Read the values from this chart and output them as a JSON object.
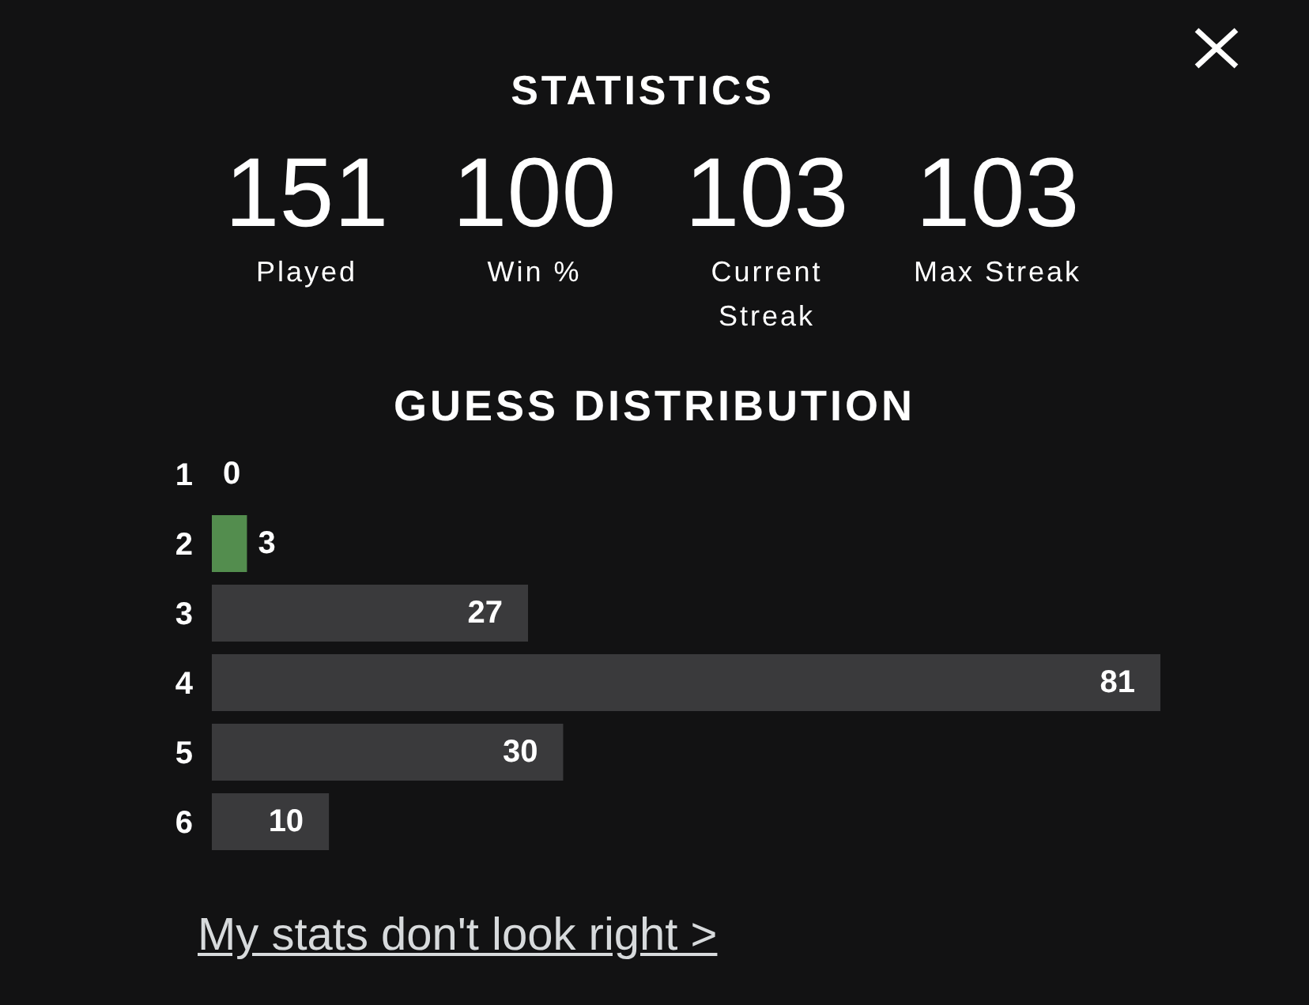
{
  "chart_data": {
    "type": "bar",
    "orientation": "horizontal",
    "title": "GUESS DISTRIBUTION",
    "categories": [
      "1",
      "2",
      "3",
      "4",
      "5",
      "6"
    ],
    "values": [
      0,
      3,
      27,
      81,
      30,
      10
    ],
    "colors": [
      "#3a3a3c",
      "#538d4e",
      "#3a3a3c",
      "#3a3a3c",
      "#3a3a3c",
      "#3a3a3c"
    ],
    "data_labels": true,
    "tick_labels": "y",
    "annotations": [
      "STATISTICS",
      "151",
      "Played",
      "100",
      "Win %",
      "103",
      "Current Streak",
      "103",
      "Max Streak",
      "My stats don't look right >"
    ]
  }
}
